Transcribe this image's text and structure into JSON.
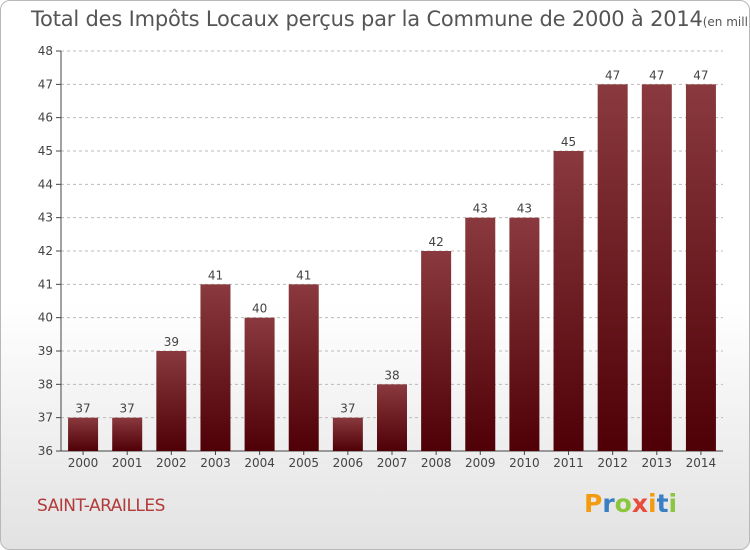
{
  "title": "Total des Impôts Locaux perçus par la Commune de 2000 à 2014",
  "unit_note": "(en milliers d'€)",
  "commune": "SAINT-ARAILLES",
  "brand": {
    "letters": [
      "P",
      "r",
      "o",
      "x",
      "i",
      "t",
      "i"
    ],
    "colors": [
      "#f39c12",
      "#3a7fc4",
      "#8cc63f",
      "#e74c3c",
      "#f39c12",
      "#3a7fc4",
      "#8cc63f"
    ]
  },
  "colors": {
    "bar_top": "#8a3a3e",
    "bar_bottom": "#4f0006",
    "axis": "#444444",
    "grid": "#bbbbbb"
  },
  "chart_data": {
    "type": "bar",
    "title": "Total des Impôts Locaux perçus par la Commune de 2000 à 2014",
    "xlabel": "",
    "ylabel": "(en milliers d'€)",
    "ylim": [
      36,
      48
    ],
    "yticks": [
      36,
      37,
      38,
      39,
      40,
      41,
      42,
      43,
      44,
      45,
      46,
      47,
      48
    ],
    "grid": true,
    "categories": [
      "2000",
      "2001",
      "2002",
      "2003",
      "2004",
      "2005",
      "2006",
      "2007",
      "2008",
      "2009",
      "2010",
      "2011",
      "2012",
      "2013",
      "2014"
    ],
    "values": [
      37,
      37,
      39,
      41,
      40,
      41,
      37,
      38,
      42,
      43,
      43,
      45,
      47,
      47,
      47
    ]
  }
}
